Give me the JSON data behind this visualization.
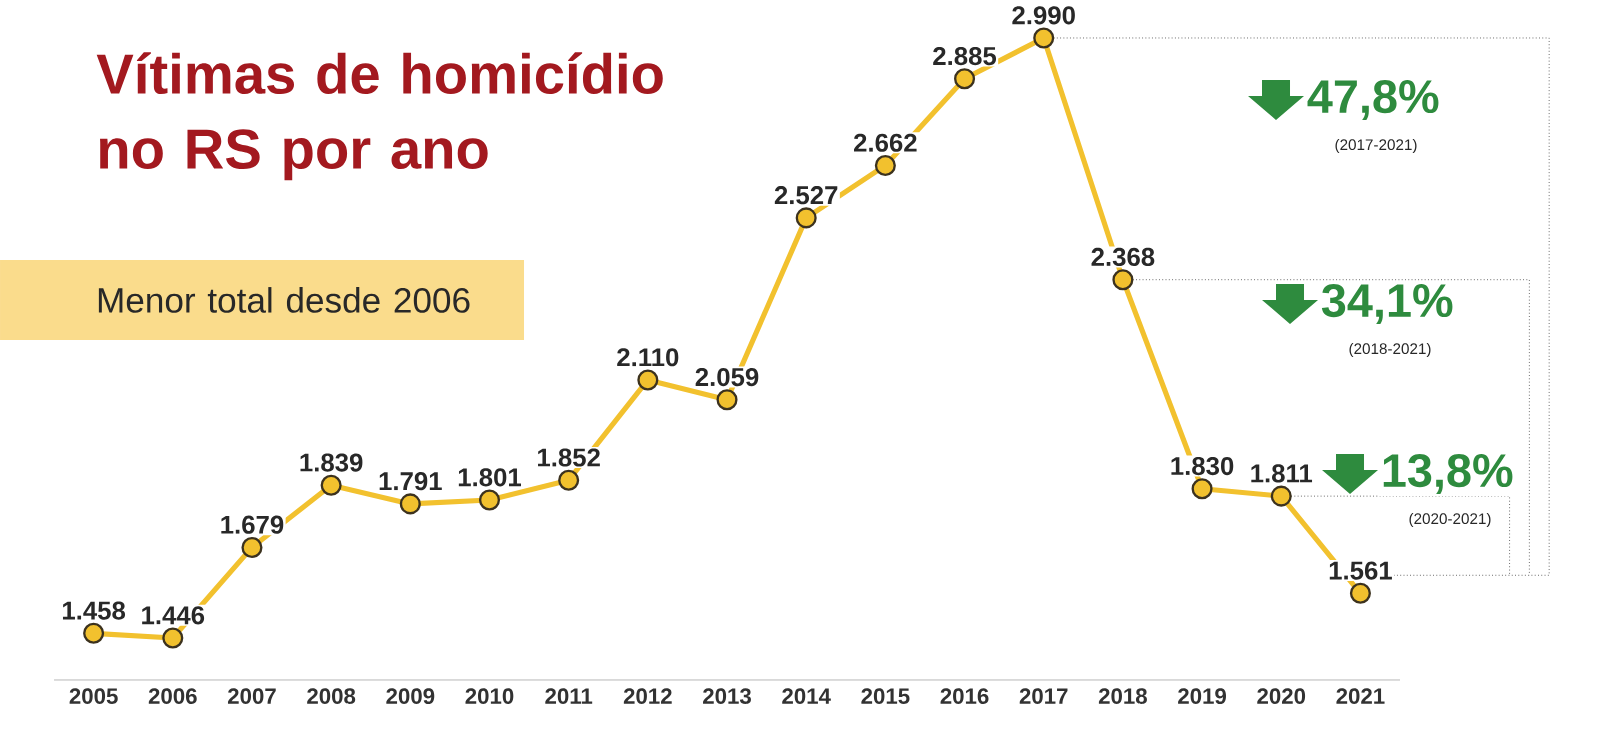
{
  "chart_data": {
    "type": "line",
    "title": "Vítimas de homicídio no RS por ano",
    "subtitle": "Menor total desde 2006",
    "categories": [
      "2005",
      "2006",
      "2007",
      "2008",
      "2009",
      "2010",
      "2011",
      "2012",
      "2013",
      "2014",
      "2015",
      "2016",
      "2017",
      "2018",
      "2019",
      "2020",
      "2021"
    ],
    "values": [
      1458,
      1446,
      1679,
      1839,
      1791,
      1801,
      1852,
      2110,
      2059,
      2527,
      2662,
      2885,
      2990,
      2368,
      1830,
      1811,
      1561
    ],
    "value_labels": [
      "1.458",
      "1.446",
      "1.679",
      "1.839",
      "1.791",
      "1.801",
      "1.852",
      "2.110",
      "2.059",
      "2.527",
      "2.662",
      "2.885",
      "2.990",
      "2.368",
      "1.830",
      "1.811",
      "1.561"
    ],
    "color": "#f2c12e",
    "marker": "circle",
    "line_style": "solid",
    "annotations": [
      "47,8%",
      "(2017-2021)",
      "34,1%",
      "(2018-2021)",
      "13,8%",
      "(2020-2021)"
    ]
  }
}
